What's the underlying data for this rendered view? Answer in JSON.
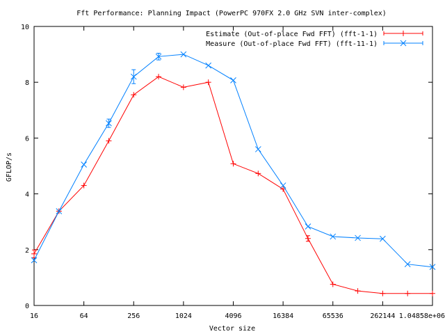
{
  "chart_data": {
    "type": "line",
    "title": "Fft Performance: Planning Impact (PowerPC 970FX 2.0 GHz SVN inter-complex)",
    "xlabel": "Vector size",
    "ylabel": "GFLOP/s",
    "x_scale": "log2",
    "xlim": [
      16,
      1048576
    ],
    "ylim": [
      0,
      10
    ],
    "grid": false,
    "legend_position": "top-right",
    "x_ticks": [
      {
        "value": 16,
        "label": "16"
      },
      {
        "value": 64,
        "label": "64"
      },
      {
        "value": 256,
        "label": "256"
      },
      {
        "value": 1024,
        "label": "1024"
      },
      {
        "value": 4096,
        "label": "4096"
      },
      {
        "value": 16384,
        "label": "16384"
      },
      {
        "value": 65536,
        "label": "65536"
      },
      {
        "value": 262144,
        "label": "262144"
      },
      {
        "value": 1048576,
        "label": "1.04858e+06"
      }
    ],
    "y_ticks": [
      {
        "value": 0,
        "label": "0"
      },
      {
        "value": 2,
        "label": "2"
      },
      {
        "value": 4,
        "label": "4"
      },
      {
        "value": 6,
        "label": "6"
      },
      {
        "value": 8,
        "label": "8"
      },
      {
        "value": 10,
        "label": "10"
      }
    ],
    "x": [
      16,
      32,
      64,
      128,
      256,
      512,
      1024,
      2048,
      4096,
      8192,
      16384,
      32768,
      65536,
      131072,
      262144,
      524288,
      1048576
    ],
    "series": [
      {
        "name": "Estimate (Out-of-place Fwd FFT) (fft-1-1)",
        "color": "#ff0000",
        "marker": "plus",
        "values": [
          1.85,
          3.38,
          4.3,
          5.9,
          7.55,
          8.2,
          7.82,
          8.0,
          5.08,
          4.73,
          4.17,
          2.4,
          0.76,
          0.52,
          0.43,
          0.43,
          0.43
        ],
        "errors": [
          0.14,
          0.0,
          0.0,
          0.0,
          0.0,
          0.0,
          0.0,
          0.0,
          0.0,
          0.0,
          0.0,
          0.1,
          0.0,
          0.0,
          0.0,
          0.0,
          0.0
        ]
      },
      {
        "name": "Measure (Out-of-place Fwd FFT) (fft-11-1)",
        "color": "#0080ff",
        "marker": "cross",
        "values": [
          1.62,
          3.38,
          5.05,
          6.53,
          8.2,
          8.92,
          9.0,
          8.6,
          8.07,
          5.6,
          4.3,
          2.83,
          2.47,
          2.42,
          2.39,
          1.48,
          1.38
        ],
        "errors": [
          0.0,
          0.0,
          0.0,
          0.15,
          0.25,
          0.12,
          0.0,
          0.0,
          0.0,
          0.0,
          0.0,
          0.0,
          0.0,
          0.0,
          0.0,
          0.0,
          0.0
        ]
      }
    ]
  }
}
